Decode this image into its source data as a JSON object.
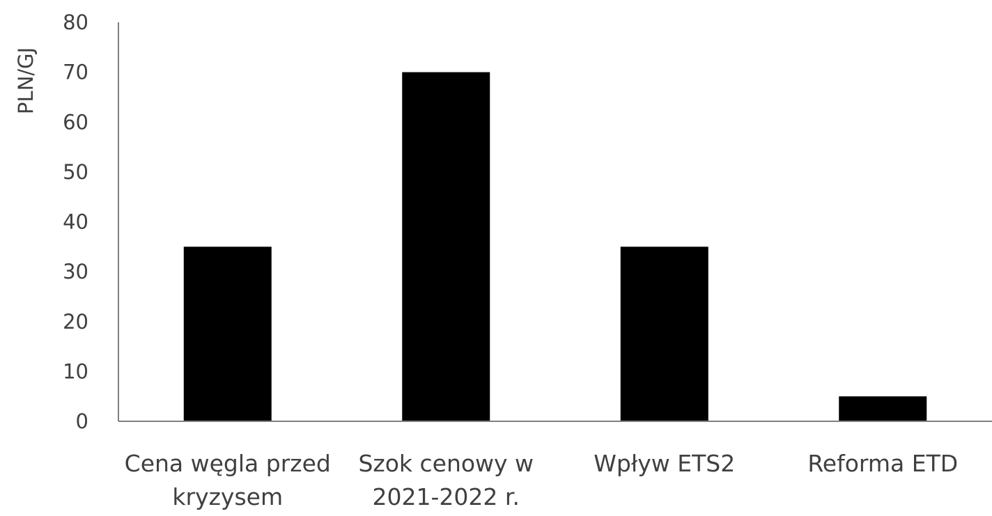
{
  "chart_data": {
    "type": "bar",
    "categories": [
      [
        "Cena węgla przed",
        "kryzysem"
      ],
      [
        "Szok cenowy w",
        "2021-2022 r."
      ],
      [
        "Wpływ ETS2"
      ],
      [
        "Reforma ETD"
      ]
    ],
    "values": [
      35,
      70,
      35,
      5
    ],
    "ylabel": "PLN/GJ",
    "ylim": [
      0,
      80
    ],
    "yticks": [
      "0",
      "10",
      "20",
      "30",
      "40",
      "50",
      "60",
      "70",
      "80"
    ],
    "bar_color": "#000000",
    "grid": false,
    "legend": "none"
  }
}
